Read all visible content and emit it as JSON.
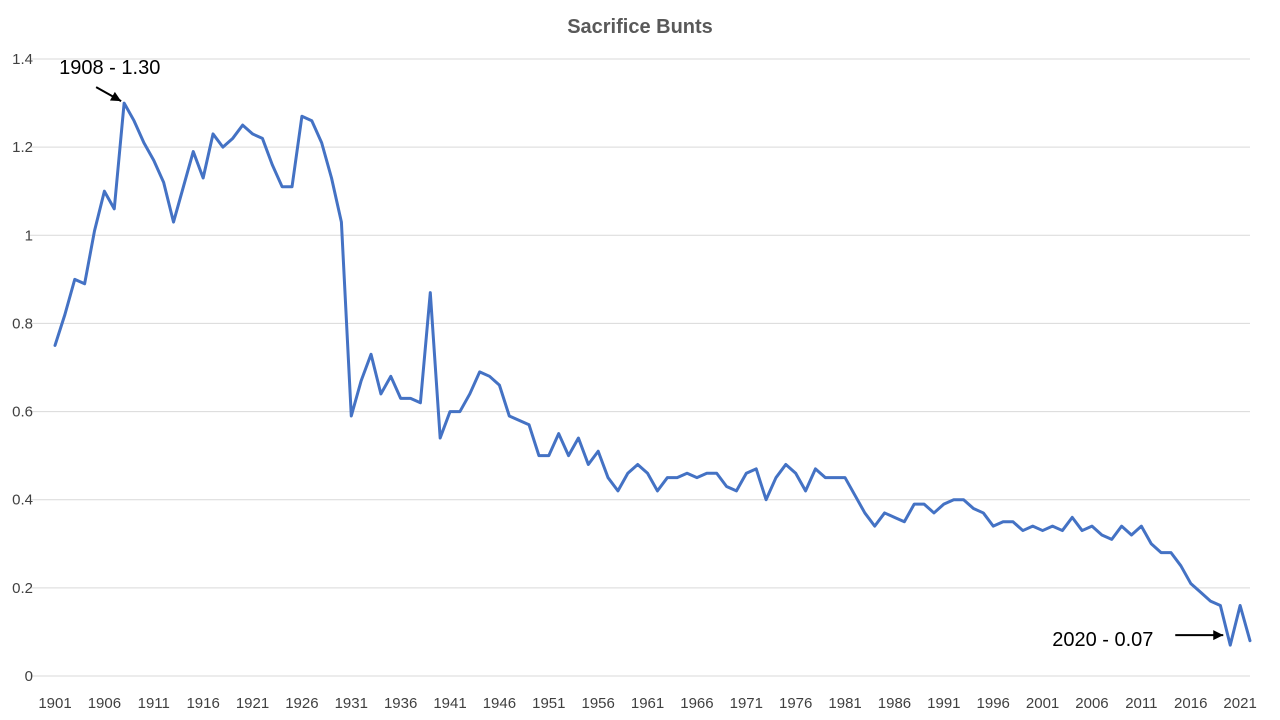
{
  "chart_data": {
    "type": "line",
    "title": "Sacrifice Bunts",
    "xlabel": "",
    "ylabel": "",
    "ylim": [
      0,
      1.4
    ],
    "y_ticks": [
      0,
      0.2,
      0.4,
      0.6,
      0.8,
      1.0,
      1.2,
      1.4
    ],
    "y_tick_labels": [
      "0",
      "0.2",
      "0.4",
      "0.6",
      "0.8",
      "1",
      "1.2",
      "1.4"
    ],
    "x_tick_labels": [
      "1901",
      "1906",
      "1911",
      "1916",
      "1921",
      "1926",
      "1931",
      "1936",
      "1941",
      "1946",
      "1951",
      "1956",
      "1961",
      "1966",
      "1971",
      "1976",
      "1981",
      "1986",
      "1991",
      "1996",
      "2001",
      "2006",
      "2011",
      "2016",
      "2021"
    ],
    "x_start": 1901,
    "x_end": 2022,
    "grid": true,
    "series": [
      {
        "name": "Sacrifice Bunts",
        "color": "#4472c4",
        "x_start": 1901,
        "values": [
          0.75,
          0.82,
          0.9,
          0.89,
          1.01,
          1.1,
          1.06,
          1.3,
          1.26,
          1.21,
          1.17,
          1.12,
          1.03,
          1.11,
          1.19,
          1.13,
          1.23,
          1.2,
          1.22,
          1.25,
          1.23,
          1.22,
          1.16,
          1.11,
          1.11,
          1.27,
          1.26,
          1.21,
          1.13,
          1.03,
          0.59,
          0.67,
          0.73,
          0.64,
          0.68,
          0.63,
          0.63,
          0.62,
          0.87,
          0.54,
          0.6,
          0.6,
          0.64,
          0.69,
          0.68,
          0.66,
          0.59,
          0.58,
          0.57,
          0.5,
          0.5,
          0.55,
          0.5,
          0.54,
          0.48,
          0.51,
          0.45,
          0.42,
          0.46,
          0.48,
          0.46,
          0.42,
          0.45,
          0.45,
          0.46,
          0.45,
          0.46,
          0.46,
          0.43,
          0.42,
          0.46,
          0.47,
          0.4,
          0.45,
          0.48,
          0.46,
          0.42,
          0.47,
          0.45,
          0.45,
          0.45,
          0.41,
          0.37,
          0.34,
          0.37,
          0.36,
          0.35,
          0.39,
          0.39,
          0.37,
          0.39,
          0.4,
          0.4,
          0.38,
          0.37,
          0.34,
          0.35,
          0.35,
          0.33,
          0.34,
          0.33,
          0.34,
          0.33,
          0.36,
          0.33,
          0.34,
          0.32,
          0.31,
          0.34,
          0.32,
          0.34,
          0.3,
          0.28,
          0.28,
          0.25,
          0.21,
          0.19,
          0.17,
          0.16,
          0.07,
          0.16,
          0.08
        ]
      }
    ],
    "annotations": [
      {
        "text": "1908 - 1.30",
        "x": 1908,
        "y": 1.3
      },
      {
        "text": "2020 - 0.07",
        "x": 2020,
        "y": 0.07
      }
    ]
  }
}
